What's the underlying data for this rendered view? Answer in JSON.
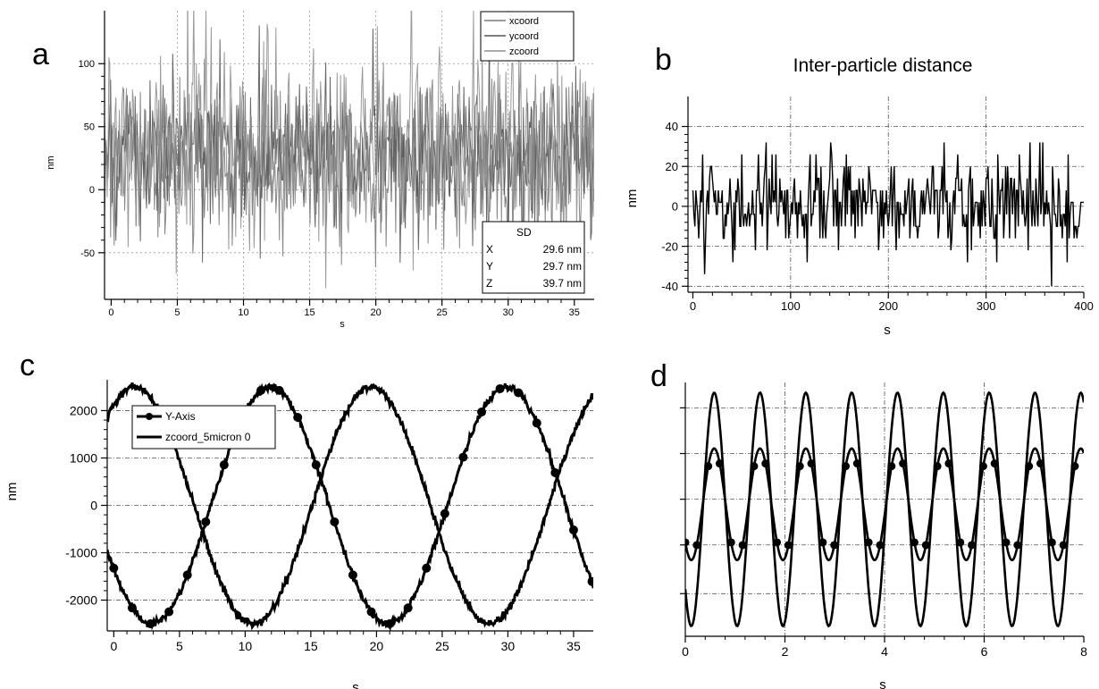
{
  "panel_labels": {
    "a": "a",
    "b": "b",
    "c": "c",
    "d": "d"
  },
  "chart_data": [
    {
      "id": "a",
      "type": "line",
      "title": "",
      "xlabel": "s",
      "ylabel": "nm",
      "xlim": [
        -0.5,
        36.5
      ],
      "ylim": [
        -87,
        142
      ],
      "xticks": [
        0,
        5,
        10,
        15,
        20,
        25,
        30,
        35
      ],
      "yticks": [
        -50,
        0,
        50,
        100
      ],
      "x_gridlines": [
        5,
        10,
        15,
        20,
        25,
        30
      ],
      "y_gridlines": [
        -50,
        0,
        50,
        100
      ],
      "legend_position": "top-right",
      "series": [
        {
          "name": "xcoord",
          "mean": 20,
          "sd": 29.6,
          "color": "#7a7a7a"
        },
        {
          "name": "ycoord",
          "mean": 30,
          "sd": 29.7,
          "color": "#555555"
        },
        {
          "name": "zcoord",
          "mean": 35,
          "sd": 39.7,
          "color": "#8f8f8f"
        }
      ],
      "sd_table": {
        "header": "SD",
        "rows": [
          {
            "axis": "X",
            "value": "29.6 nm"
          },
          {
            "axis": "Y",
            "value": "29.7 nm"
          },
          {
            "axis": "Z",
            "value": "39.7 nm"
          }
        ]
      },
      "grid": true
    },
    {
      "id": "b",
      "type": "line",
      "title": "Inter-particle distance",
      "xlabel": "s",
      "ylabel": "nm",
      "xlim": [
        -5,
        400
      ],
      "ylim": [
        -43,
        55
      ],
      "xticks": [
        0,
        100,
        200,
        300,
        400
      ],
      "yticks": [
        -40,
        -20,
        0,
        20,
        40
      ],
      "x_gridlines": [
        100,
        200,
        300
      ],
      "y_gridlines": [
        -40,
        -20,
        0,
        20,
        40
      ],
      "series": [
        {
          "sd": 13,
          "color": "#000000"
        }
      ],
      "grid": true
    },
    {
      "id": "c",
      "type": "line",
      "title": "",
      "xlabel": "s",
      "ylabel": "nm",
      "xlim": [
        -0.5,
        36.5
      ],
      "ylim": [
        -2650,
        2650
      ],
      "xticks": [
        0,
        5,
        10,
        15,
        20,
        25,
        30,
        35
      ],
      "yticks": [
        -2000,
        -1000,
        0,
        1000,
        2000
      ],
      "y_gridlines": [
        -2000,
        -1000,
        0,
        1000,
        2000
      ],
      "legend_position": "top-left",
      "series": [
        {
          "name": "Y-Axis",
          "amplitude": 2500,
          "period": 18,
          "phase_deg": -148,
          "markers": true,
          "color": "#000000"
        },
        {
          "name": "zcoord_5micron 0",
          "amplitude": 2500,
          "period": 18,
          "phase_deg": 58,
          "markers": false,
          "color": "#000000"
        }
      ],
      "grid": true
    },
    {
      "id": "d",
      "type": "line",
      "title": "",
      "xlabel": "s",
      "ylabel": "",
      "xlim": [
        0,
        8
      ],
      "ylim": [
        -1.25,
        1.25
      ],
      "xticks": [
        0,
        2,
        4,
        6,
        8
      ],
      "x_gridlines": [
        2,
        4,
        6
      ],
      "y_gridlines": [
        -0.83,
        -0.35,
        0.1,
        0.55,
        1.0
      ],
      "series": [
        {
          "amplitude": 1.15,
          "period": 0.92,
          "offset": 0.0,
          "markers": false,
          "color": "#000000"
        },
        {
          "amplitude": 0.55,
          "period": 0.92,
          "offset": 0.05,
          "markers": true,
          "color": "#000000"
        }
      ],
      "grid": true
    }
  ]
}
